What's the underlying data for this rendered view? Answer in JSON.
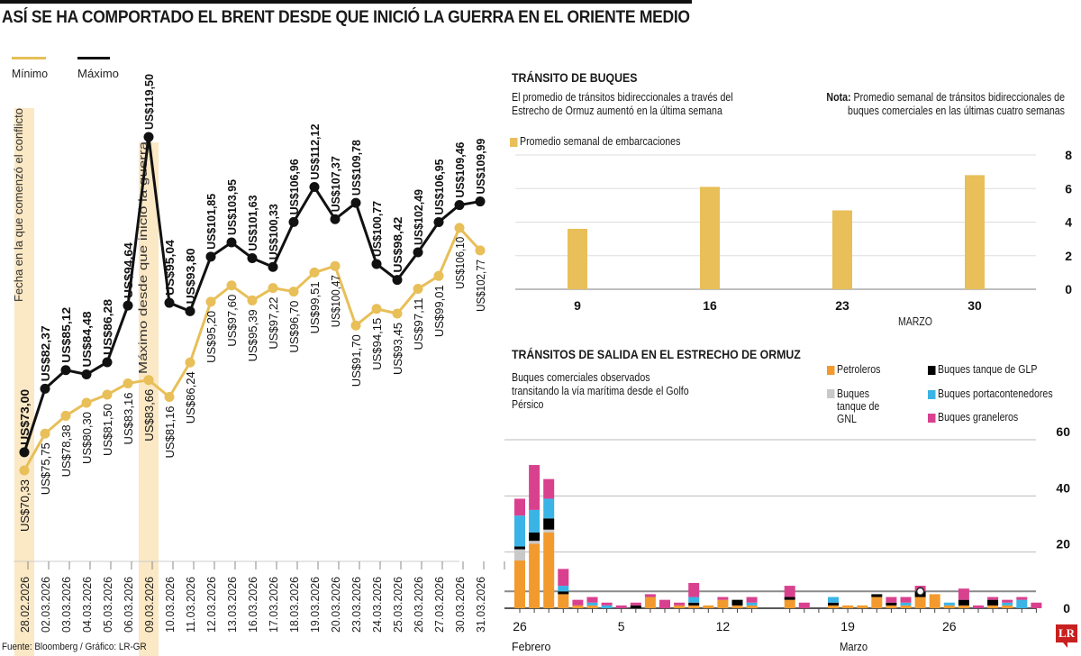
{
  "title": "ASÍ SE HA COMPORTADO EL BRENT DESDE QUE INICIÓ LA GUERRA EN EL ORIENTE MEDIO",
  "source": "Fuente: Bloomberg / Gráfico: LR-GR",
  "logo": "LR",
  "colors": {
    "min": "#e8bf58",
    "max": "#111111",
    "highlight": "#fbe8c4",
    "bar": "#e8bf58",
    "petroleros": "#f29a2e",
    "gnl": "#c9c9c9",
    "glp": "#000000",
    "portacontenedores": "#3ab4e6",
    "graneleros": "#d9418f",
    "grid": "#cfcfcf",
    "refline": "#8a8a8a"
  },
  "chart_data": [
    {
      "type": "line",
      "title": "ASÍ SE HA COMPORTADO EL BRENT DESDE QUE INICIÓ LA GUERRA EN EL ORIENTE MEDIO",
      "currency_prefix": "US$",
      "x": [
        "28.02.2026",
        "02.03.2026",
        "03.03.2026",
        "04.03.2026",
        "05.03.2026",
        "06.03.2026",
        "09.03.2026",
        "10.03.2026",
        "11.03.2026",
        "12.03.2026",
        "13.03.2026",
        "16.03.2026",
        "17.03.2026",
        "18.03.2026",
        "19.03.2026",
        "20.03.2026",
        "23.03.2026",
        "24.03.2026",
        "25.03.2026",
        "26.03.2026",
        "27.03.2026",
        "30.03.2026",
        "31.03.2026"
      ],
      "series": [
        {
          "name": "Mínimo",
          "values": [
            70.33,
            75.75,
            78.38,
            80.3,
            81.5,
            83.16,
            83.66,
            81.16,
            86.24,
            95.2,
            97.6,
            95.39,
            97.22,
            96.7,
            99.51,
            100.47,
            91.7,
            94.15,
            93.45,
            97.11,
            99.01,
            106.1,
            102.77
          ],
          "labels": [
            "US$70,33",
            "US$75,75",
            "US$78,38",
            "US$80,30",
            "US$81,50",
            "US$83,16",
            "US$83,66",
            "US$81,16",
            "US$86,24",
            "US$95,20",
            "US$97,60",
            "US$95,39",
            "US$97,22",
            "US$96,70",
            "US$99,51",
            "US$100,47",
            "US$91,70",
            "US$94,15",
            "US$93,45",
            "US$97,11",
            "US$99,01",
            "US$106,10",
            "US$102,77"
          ]
        },
        {
          "name": "Máximo",
          "values": [
            73.0,
            82.37,
            85.12,
            84.48,
            86.28,
            94.64,
            119.5,
            95.04,
            93.8,
            101.85,
            103.95,
            101.63,
            100.33,
            106.96,
            112.12,
            107.37,
            109.78,
            100.77,
            98.42,
            102.49,
            106.95,
            109.46,
            109.99
          ],
          "labels": [
            "US$73,00",
            "US$82,37",
            "US$85,12",
            "US$84,48",
            "US$86,28",
            "US$94,64",
            "US$119,50",
            "US$95,04",
            "US$93,80",
            "US$101,85",
            "US$103,95",
            "US$101,63",
            "US$100,33",
            "US$106,96",
            "US$112,12",
            "US$107,37",
            "US$109,78",
            "US$100,77",
            "US$98,42",
            "US$102,49",
            "US$106,95",
            "US$109,46",
            "US$109,99"
          ]
        }
      ],
      "legend": [
        "Mínimo",
        "Máximo"
      ],
      "legend_position": "top-left",
      "annotations": [
        {
          "date": "28.02.2026",
          "text": "Fecha en la que comenzó el conflicto"
        },
        {
          "date": "09.03.2026",
          "text": "Máximo desde que inició la guerra"
        }
      ],
      "ylim": [
        68,
        122
      ]
    },
    {
      "type": "bar",
      "title": "TRÁNSITO DE BUQUES",
      "subtitle": "El promedio de tránsitos bidireccionales a través del Estrecho de Ormuz aumentó en la última semana",
      "note_label": "Nota:",
      "note": "Promedio semanal de tránsitos bidireccionales de buques comerciales en las últimas cuatro semanas",
      "legend": [
        "Promedio semanal de embarcaciones"
      ],
      "categories": [
        "9",
        "16",
        "23",
        "30"
      ],
      "values": [
        3.6,
        6.1,
        4.7,
        6.8
      ],
      "xlabel": "MARZO",
      "yticks": [
        0,
        2,
        4,
        6,
        8
      ],
      "ylim": [
        0,
        8
      ]
    },
    {
      "type": "bar",
      "stacked": true,
      "title": "TRÁNSITOS DE SALIDA EN EL ESTRECHO DE ORMUZ",
      "subtitle": "Buques comerciales observados transitando la vía marítima desde el Golfo Pérsico",
      "legend": [
        "Petroleros",
        "Buques tanque de GNL",
        "Buques tanque de GLP",
        "Buques portacontenedores",
        "Buques graneleros"
      ],
      "x_tick_labels": [
        {
          "day": "26",
          "month": "Febrero"
        },
        {
          "day": "5",
          "month": ""
        },
        {
          "day": "12",
          "month": ""
        },
        {
          "day": "19",
          "month": "Marzo"
        },
        {
          "day": "26",
          "month": ""
        }
      ],
      "yticks": [
        0,
        20,
        40,
        60
      ],
      "ylim": [
        0,
        60
      ],
      "reference_value": 6,
      "categories": [
        "26 Feb",
        "27 Feb",
        "28 Feb",
        "1 Mar",
        "2 Mar",
        "3 Mar",
        "4 Mar",
        "5 Mar",
        "6 Mar",
        "7 Mar",
        "8 Mar",
        "9 Mar",
        "10 Mar",
        "11 Mar",
        "12 Mar",
        "13 Mar",
        "14 Mar",
        "15 Mar",
        "16 Mar",
        "17 Mar",
        "18 Mar",
        "19 Mar",
        "20 Mar",
        "21 Mar",
        "22 Mar",
        "23 Mar",
        "24 Mar",
        "25 Mar",
        "26 Mar",
        "27 Mar",
        "28 Mar",
        "29 Mar",
        "30 Mar",
        "31 Mar",
        "1 Abr"
      ],
      "series": [
        {
          "name": "Petroleros",
          "values": [
            17,
            23,
            27,
            5,
            1,
            1,
            0,
            0,
            0,
            4,
            0,
            1,
            1,
            1,
            3,
            1,
            1,
            3,
            0,
            0,
            1,
            1,
            1,
            4,
            1,
            1,
            4,
            5,
            1,
            1,
            0,
            1,
            1,
            0,
            0
          ]
        },
        {
          "name": "Buques tanque de GNL",
          "values": [
            4,
            1,
            1,
            0,
            0,
            0,
            0,
            0,
            0,
            0,
            0,
            0,
            0,
            0,
            0,
            0,
            0,
            0,
            0,
            0,
            0,
            0,
            0,
            0,
            0,
            0,
            0,
            0,
            0,
            0,
            0,
            0,
            0,
            0,
            0
          ]
        },
        {
          "name": "Buques tanque de GLP",
          "values": [
            1,
            3,
            4,
            1,
            0,
            0,
            0,
            0,
            1,
            0,
            0,
            0,
            1,
            0,
            0,
            2,
            0,
            1,
            0,
            0,
            1,
            0,
            0,
            1,
            1,
            0,
            2,
            0,
            0,
            2,
            0,
            2,
            0,
            0,
            0
          ]
        },
        {
          "name": "Buques portacontenedores",
          "values": [
            11,
            8,
            7,
            2,
            0,
            1,
            1,
            0,
            0,
            0,
            0,
            0,
            2,
            0,
            0,
            0,
            1,
            0,
            0,
            0,
            2,
            0,
            0,
            0,
            0,
            1,
            0,
            0,
            1,
            0,
            0,
            0,
            1,
            3,
            0
          ]
        },
        {
          "name": "Buques graneleros",
          "values": [
            6,
            16,
            7,
            6,
            2,
            2,
            1,
            1,
            1,
            1,
            3,
            1,
            5,
            0,
            1,
            0,
            2,
            4,
            2,
            0,
            0,
            0,
            0,
            0,
            2,
            2,
            2,
            0,
            0,
            4,
            1,
            1,
            1,
            1,
            2
          ]
        }
      ],
      "gaps_after_index": [
        16
      ]
    }
  ]
}
